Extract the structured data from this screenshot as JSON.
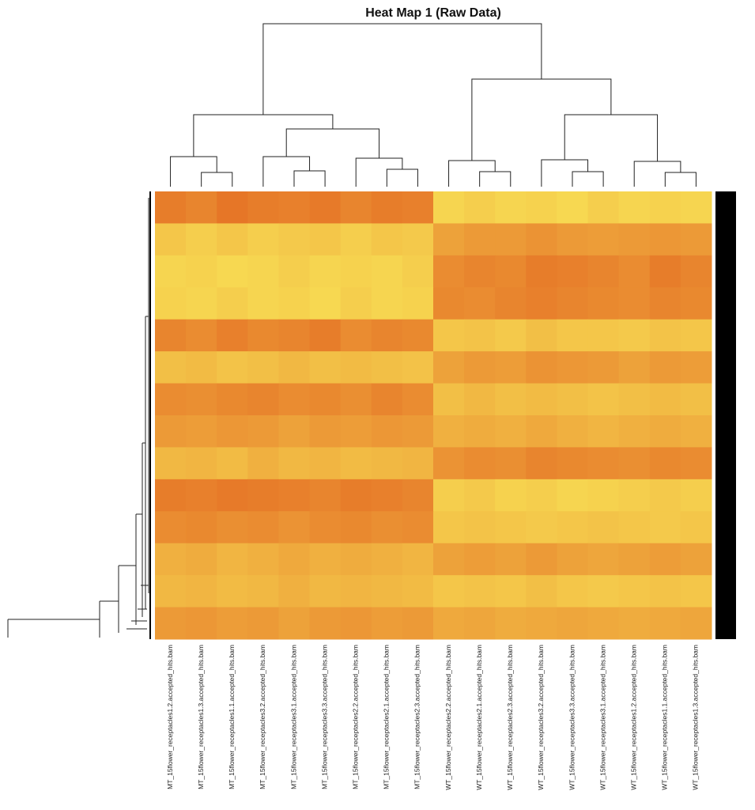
{
  "chart_data": {
    "type": "heatmap",
    "title": "Heat Map 1 (Raw Data)",
    "categories": [
      "MT_15flower_receptacles1.2.accepted_hits.bam",
      "MT_15flower_receptacles1.3.accepted_hits.bam",
      "MT_15flower_receptacles1.1.accepted_hits.bam",
      "MT_15flower_receptacles3.2.accepted_hits.bam",
      "MT_15flower_receptacles3.1.accepted_hits.bam",
      "MT_15flower_receptacles3.3.accepted_hits.bam",
      "MT_15flower_receptacles2.2.accepted_hits.bam",
      "MT_15flower_receptacles2.1.accepted_hits.bam",
      "MT_15flower_receptacles2.3.accepted_hits.bam",
      "WT_15flower_receptacles2.2.accepted_hits.bam",
      "WT_15flower_receptacles2.1.accepted_hits.bam",
      "WT_15flower_receptacles2.3.accepted_hits.bam",
      "WT_15flower_receptacles3.2.accepted_hits.bam",
      "WT_15flower_receptacles3.3.accepted_hits.bam",
      "WT_15flower_receptacles3.1.accepted_hits.bam",
      "WT_15flower_receptacles1.2.accepted_hits.bam",
      "WT_15flower_receptacles1.1.accepted_hits.bam",
      "WT_15flower_receptacles1.3.accepted_hits.bam"
    ],
    "values": [
      [
        0.8,
        0.75,
        0.85,
        0.8,
        0.78,
        0.82,
        0.75,
        0.8,
        0.78,
        0.2,
        0.25,
        0.2,
        0.22,
        0.18,
        0.25,
        0.2,
        0.22,
        0.2
      ],
      [
        0.3,
        0.25,
        0.3,
        0.25,
        0.28,
        0.3,
        0.25,
        0.3,
        0.28,
        0.55,
        0.6,
        0.6,
        0.65,
        0.6,
        0.58,
        0.6,
        0.62,
        0.6
      ],
      [
        0.2,
        0.22,
        0.18,
        0.2,
        0.25,
        0.2,
        0.22,
        0.2,
        0.25,
        0.7,
        0.75,
        0.72,
        0.8,
        0.78,
        0.75,
        0.7,
        0.8,
        0.75
      ],
      [
        0.22,
        0.2,
        0.25,
        0.2,
        0.22,
        0.18,
        0.25,
        0.2,
        0.22,
        0.72,
        0.7,
        0.75,
        0.78,
        0.75,
        0.72,
        0.7,
        0.75,
        0.72
      ],
      [
        0.75,
        0.7,
        0.78,
        0.72,
        0.75,
        0.8,
        0.7,
        0.75,
        0.72,
        0.3,
        0.32,
        0.28,
        0.35,
        0.3,
        0.3,
        0.28,
        0.32,
        0.3
      ],
      [
        0.35,
        0.38,
        0.32,
        0.35,
        0.4,
        0.35,
        0.38,
        0.35,
        0.33,
        0.55,
        0.6,
        0.58,
        0.65,
        0.62,
        0.6,
        0.55,
        0.6,
        0.58
      ],
      [
        0.7,
        0.68,
        0.72,
        0.75,
        0.7,
        0.72,
        0.68,
        0.75,
        0.7,
        0.35,
        0.4,
        0.35,
        0.38,
        0.35,
        0.32,
        0.35,
        0.38,
        0.35
      ],
      [
        0.6,
        0.58,
        0.62,
        0.6,
        0.55,
        0.6,
        0.58,
        0.62,
        0.6,
        0.45,
        0.48,
        0.45,
        0.5,
        0.45,
        0.42,
        0.45,
        0.48,
        0.45
      ],
      [
        0.4,
        0.42,
        0.38,
        0.45,
        0.4,
        0.42,
        0.38,
        0.4,
        0.42,
        0.65,
        0.7,
        0.68,
        0.75,
        0.72,
        0.7,
        0.68,
        0.72,
        0.7
      ],
      [
        0.8,
        0.78,
        0.82,
        0.8,
        0.78,
        0.75,
        0.8,
        0.78,
        0.75,
        0.25,
        0.28,
        0.22,
        0.25,
        0.2,
        0.22,
        0.25,
        0.28,
        0.25
      ],
      [
        0.7,
        0.72,
        0.68,
        0.7,
        0.65,
        0.7,
        0.72,
        0.68,
        0.7,
        0.3,
        0.32,
        0.3,
        0.28,
        0.3,
        0.32,
        0.3,
        0.28,
        0.3
      ],
      [
        0.45,
        0.48,
        0.42,
        0.45,
        0.5,
        0.45,
        0.48,
        0.45,
        0.42,
        0.55,
        0.58,
        0.55,
        0.6,
        0.55,
        0.52,
        0.55,
        0.58,
        0.55
      ],
      [
        0.4,
        0.42,
        0.38,
        0.4,
        0.45,
        0.4,
        0.42,
        0.4,
        0.38,
        0.3,
        0.32,
        0.3,
        0.35,
        0.3,
        0.28,
        0.3,
        0.32,
        0.3
      ],
      [
        0.6,
        0.62,
        0.58,
        0.6,
        0.55,
        0.6,
        0.62,
        0.58,
        0.6,
        0.5,
        0.52,
        0.48,
        0.5,
        0.52,
        0.5,
        0.48,
        0.5,
        0.52
      ]
    ],
    "zlim": [
      0,
      1
    ],
    "colors": [
      "#fbf25c",
      "#e2601e"
    ]
  }
}
